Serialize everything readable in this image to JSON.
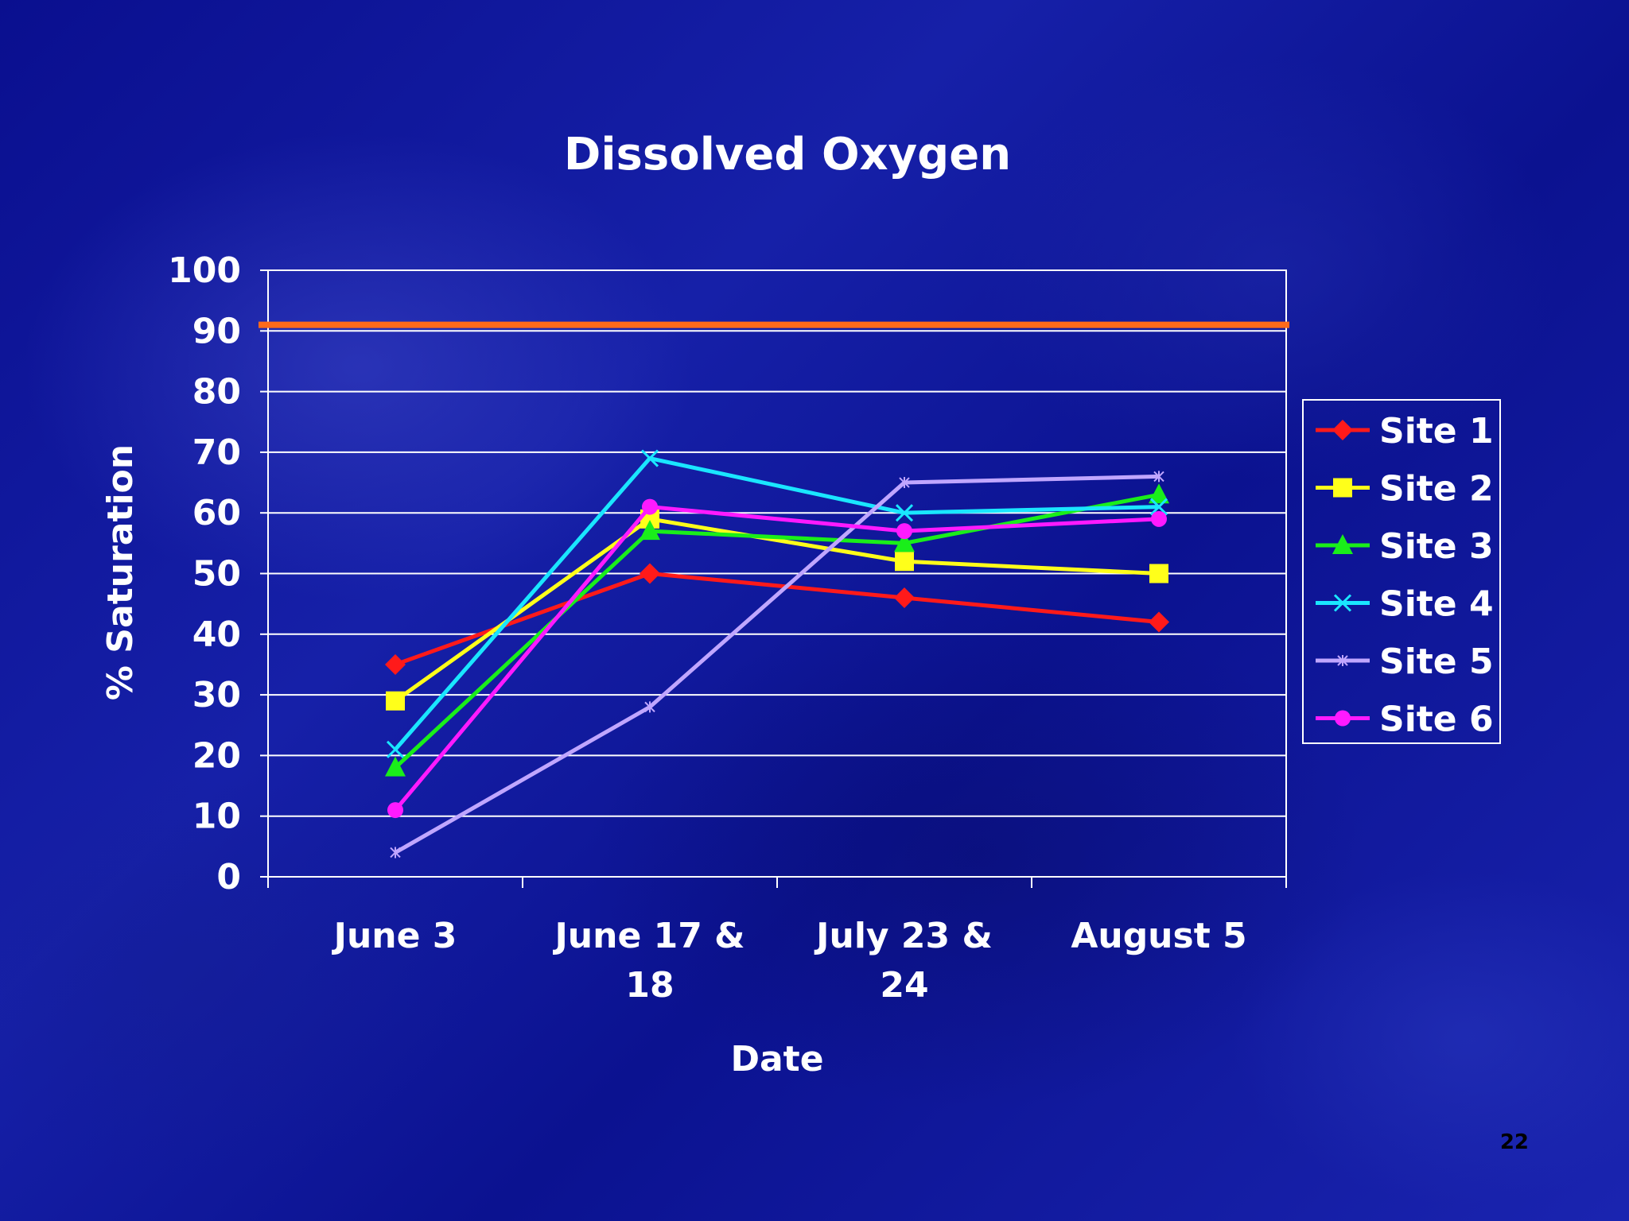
{
  "slide": {
    "page_number": "22"
  },
  "chart_data": {
    "type": "line",
    "title": "Dissolved Oxygen",
    "xlabel": "Date",
    "ylabel": "% Saturation",
    "ylim": [
      0,
      100
    ],
    "ytick_step": 10,
    "grid": true,
    "legend_position": "right",
    "categories": [
      "June 3",
      "June 17 & 18",
      "July 23 & 24",
      "August 5"
    ],
    "category_label_lines": [
      [
        "June 3"
      ],
      [
        "June 17 &",
        "18"
      ],
      [
        "July 23 &",
        "24"
      ],
      [
        "August 5"
      ]
    ],
    "reference_line": {
      "value": 91,
      "color": "#ff6a1a"
    },
    "series": [
      {
        "name": "Site 1",
        "color": "#ff1a1a",
        "marker": "diamond",
        "values": [
          35,
          50,
          46,
          42
        ]
      },
      {
        "name": "Site 2",
        "color": "#ffff1a",
        "marker": "square",
        "values": [
          29,
          59,
          52,
          50
        ]
      },
      {
        "name": "Site 3",
        "color": "#1aee1a",
        "marker": "triangle",
        "values": [
          18,
          57,
          55,
          63
        ]
      },
      {
        "name": "Site 4",
        "color": "#1ae6ff",
        "marker": "x",
        "values": [
          21,
          69,
          60,
          61
        ]
      },
      {
        "name": "Site 5",
        "color": "#c0a6ff",
        "marker": "star",
        "values": [
          4,
          28,
          65,
          66
        ]
      },
      {
        "name": "Site 6",
        "color": "#ff1aff",
        "marker": "circle",
        "values": [
          11,
          61,
          57,
          59
        ]
      }
    ]
  }
}
